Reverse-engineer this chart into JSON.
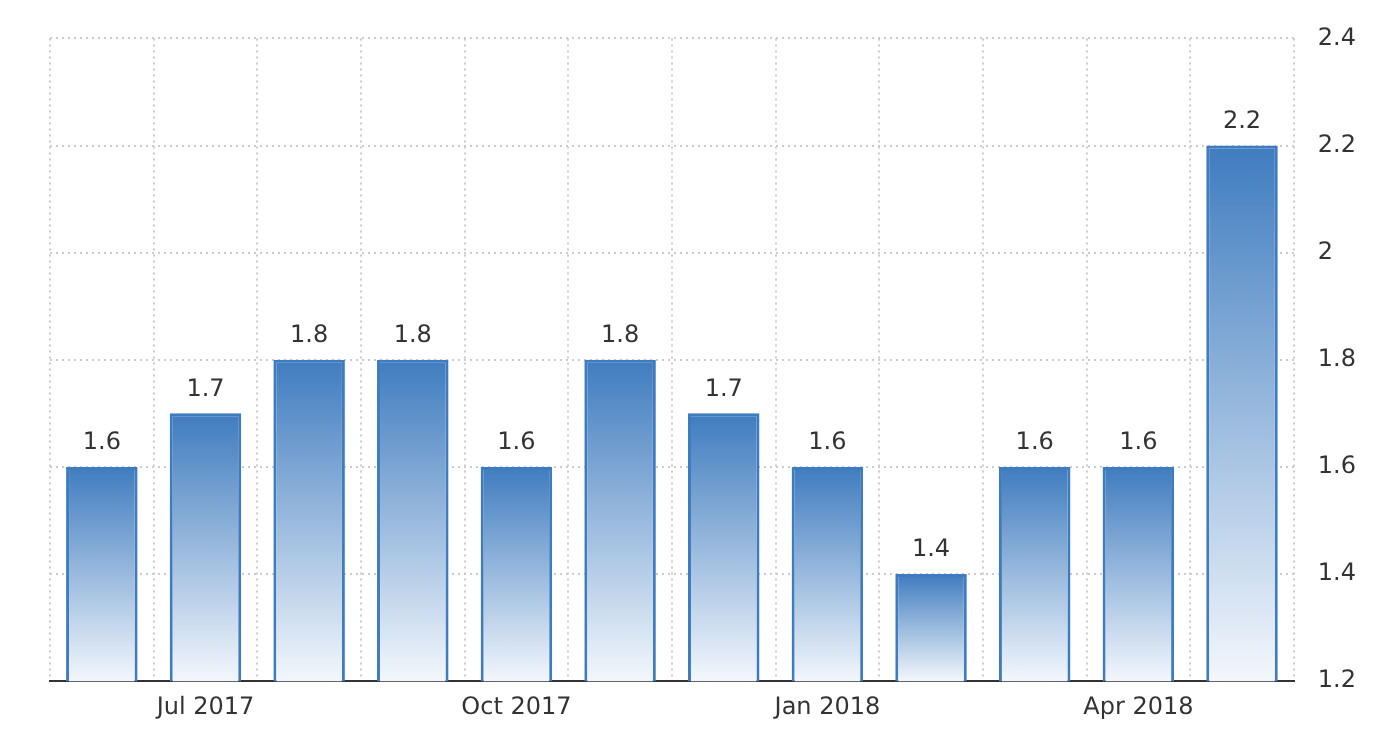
{
  "chart_data": {
    "type": "bar",
    "categories": [
      null,
      "Jul 2017",
      null,
      null,
      "Oct 2017",
      null,
      null,
      "Jan 2018",
      null,
      null,
      "Apr 2018",
      null
    ],
    "values": [
      1.6,
      1.7,
      1.8,
      1.8,
      1.6,
      1.8,
      1.7,
      1.6,
      1.4,
      1.6,
      1.6,
      2.2
    ],
    "color": "#3f7cbf",
    "ylim": [
      1.2,
      2.4
    ],
    "yticks": [
      "1.2",
      "1.4",
      "1.6",
      "1.8",
      "2",
      "2.2",
      "2.4"
    ],
    "grid": true,
    "legend": false,
    "data_labels": true
  }
}
